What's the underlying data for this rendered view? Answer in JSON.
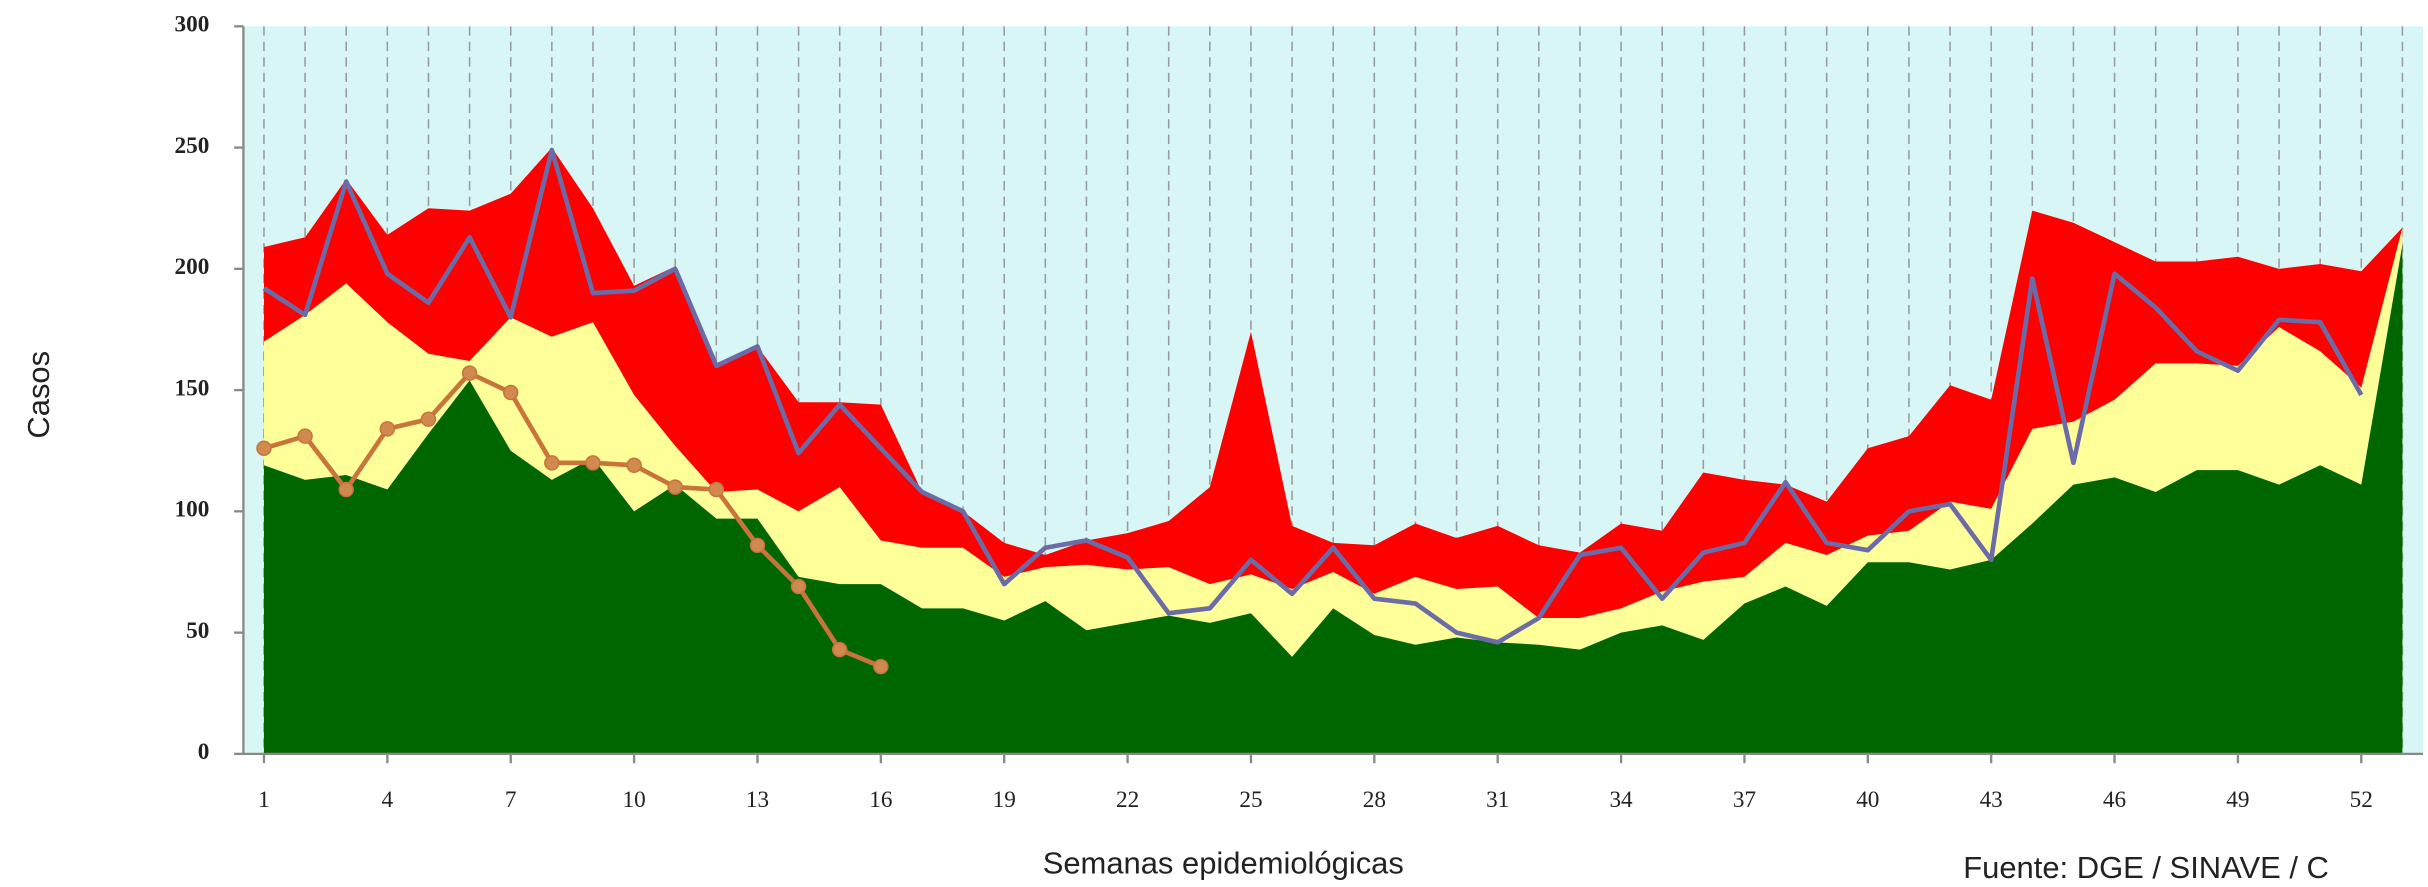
{
  "chart_data": {
    "type": "area",
    "y_label": "Casos",
    "x_label": "Semanas epidemiológicas",
    "source": "Fuente: DGE / SINAVE / C",
    "x": [
      1,
      2,
      3,
      4,
      5,
      6,
      7,
      8,
      9,
      10,
      11,
      12,
      13,
      14,
      15,
      16,
      17,
      18,
      19,
      20,
      21,
      22,
      23,
      24,
      25,
      26,
      27,
      28,
      29,
      30,
      31,
      32,
      33,
      34,
      35,
      36,
      37,
      38,
      39,
      40,
      41,
      42,
      43,
      44,
      45,
      46,
      47,
      48,
      49,
      50,
      51,
      52,
      53
    ],
    "xlim": [
      0.5,
      53.5
    ],
    "xticks": [
      1,
      4,
      7,
      10,
      13,
      16,
      19,
      22,
      25,
      28,
      31,
      34,
      37,
      40,
      43,
      46,
      49,
      52
    ],
    "ylim": [
      0,
      300
    ],
    "yticks": [
      0,
      50,
      100,
      150,
      200,
      250,
      300
    ],
    "grid": true,
    "background": "#d8f6f6",
    "series": [
      {
        "kind": "area",
        "color": "#ff0000",
        "values": [
          209,
          213,
          237,
          214,
          225,
          224,
          231,
          250,
          225,
          193,
          201,
          161,
          168,
          145,
          145,
          144,
          108,
          100,
          87,
          82,
          88,
          91,
          96,
          110,
          174,
          94,
          87,
          86,
          95,
          89,
          94,
          86,
          83,
          95,
          92,
          116,
          113,
          111,
          104,
          126,
          131,
          152,
          146,
          224,
          219,
          211,
          203,
          203,
          205,
          200,
          202,
          199,
          217
        ]
      },
      {
        "kind": "area",
        "color": "#ffff99",
        "values": [
          170,
          181,
          194,
          178,
          165,
          162,
          180,
          172,
          178,
          148,
          127,
          108,
          109,
          100,
          110,
          88,
          85,
          85,
          73,
          77,
          78,
          76,
          77,
          70,
          74,
          68,
          75,
          66,
          73,
          68,
          69,
          56,
          56,
          60,
          67,
          71,
          73,
          87,
          82,
          90,
          92,
          104,
          101,
          134,
          137,
          146,
          161,
          161,
          160,
          176,
          166,
          151,
          217
        ]
      },
      {
        "kind": "area",
        "color": "#006600",
        "values": [
          119,
          113,
          115,
          109,
          132,
          154,
          125,
          113,
          122,
          100,
          111,
          97,
          97,
          73,
          70,
          70,
          60,
          60,
          55,
          63,
          51,
          54,
          57,
          54,
          58,
          40,
          60,
          49,
          45,
          48,
          46,
          45,
          43,
          50,
          53,
          47,
          62,
          69,
          61,
          79,
          79,
          76,
          80,
          95,
          111,
          114,
          108,
          117,
          117,
          111,
          119,
          111,
          210
        ]
      },
      {
        "kind": "line",
        "color": "#6b6ba8",
        "values": [
          192,
          181,
          236,
          198,
          186,
          213,
          180,
          249,
          190,
          191,
          200,
          160,
          168,
          124,
          144,
          126,
          108,
          100,
          70,
          85,
          88,
          81,
          58,
          60,
          80,
          66,
          85,
          64,
          62,
          50,
          46,
          56,
          82,
          85,
          64,
          83,
          87,
          112,
          87,
          84,
          100,
          103,
          80,
          196,
          120,
          198,
          184,
          166,
          158,
          179,
          178,
          148,
          null
        ]
      },
      {
        "kind": "line",
        "color": "#c8743a",
        "marker_color": "#d08a50",
        "values": [
          126,
          131,
          109,
          134,
          138,
          157,
          149,
          120,
          120,
          119,
          110,
          109,
          86,
          69,
          43,
          36,
          null,
          null,
          null,
          null,
          null,
          null,
          null,
          null,
          null,
          null,
          null,
          null,
          null,
          null,
          null,
          null,
          null,
          null,
          null,
          null,
          null,
          null,
          null,
          null,
          null,
          null,
          null,
          null,
          null,
          null,
          null,
          null,
          null,
          null,
          null,
          null,
          null
        ]
      }
    ]
  }
}
